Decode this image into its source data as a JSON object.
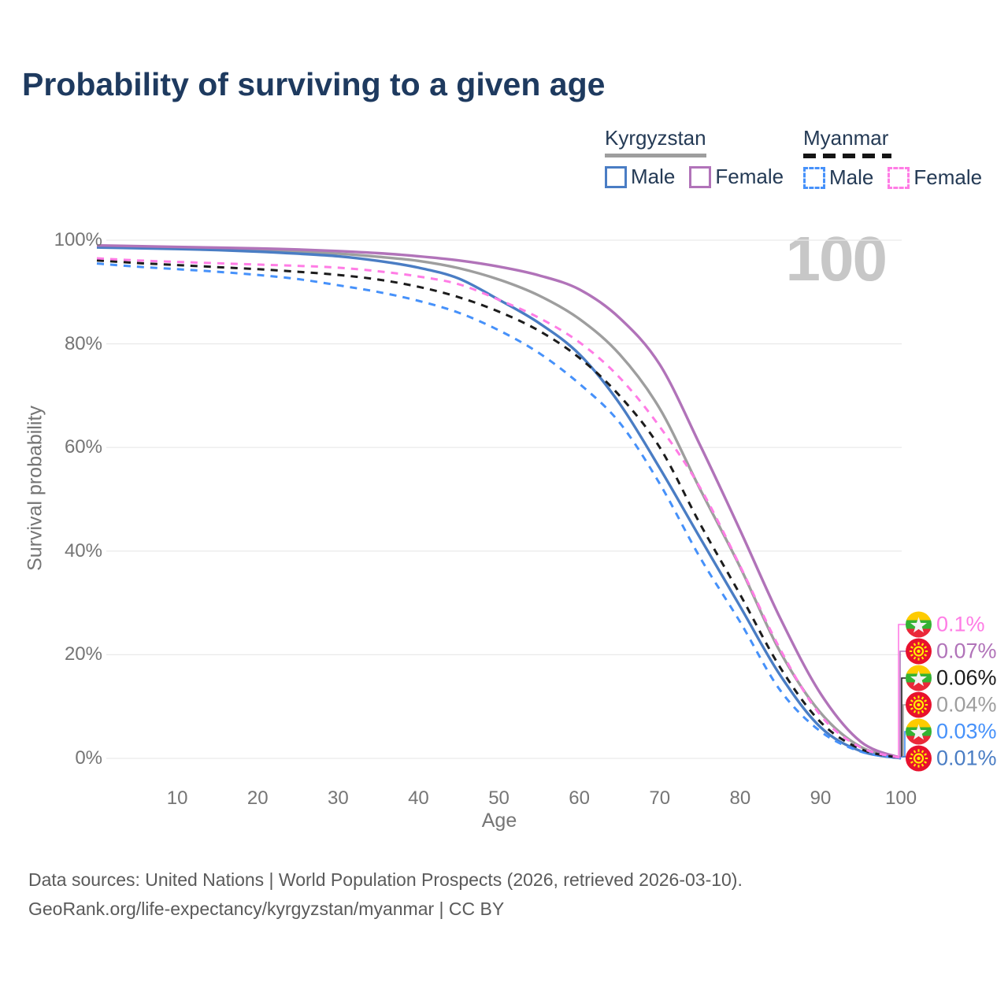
{
  "title": "Probability of surviving to a given age",
  "legend": {
    "groups": [
      {
        "country": "Kyrgyzstan",
        "line_style": "solid",
        "items": [
          {
            "label": "Male"
          },
          {
            "label": "Female"
          }
        ]
      },
      {
        "country": "Myanmar",
        "line_style": "dashed",
        "items": [
          {
            "label": "Male"
          },
          {
            "label": "Female"
          }
        ]
      }
    ]
  },
  "watermark": "100",
  "y_axis": {
    "label": "Survival probability",
    "ticks": [
      "0%",
      "20%",
      "40%",
      "60%",
      "80%",
      "100%"
    ],
    "tick_values": [
      0,
      20,
      40,
      60,
      80,
      100
    ]
  },
  "x_axis": {
    "label": "Age",
    "ticks": [
      "10",
      "20",
      "30",
      "40",
      "50",
      "60",
      "70",
      "80",
      "90",
      "100"
    ],
    "tick_values": [
      10,
      20,
      30,
      40,
      50,
      60,
      70,
      80,
      90,
      100
    ]
  },
  "end_labels": [
    {
      "value": "0.1%",
      "flag": "myanmar",
      "series": "Myanmar Female",
      "color": "#ff7ce5"
    },
    {
      "value": "0.07%",
      "flag": "kyrgyzstan",
      "series": "Kyrgyzstan Female",
      "color": "#b173b9"
    },
    {
      "value": "0.06%",
      "flag": "myanmar",
      "series": "Myanmar Total",
      "color": "#1c1c1c"
    },
    {
      "value": "0.04%",
      "flag": "kyrgyzstan",
      "series": "Kyrgyzstan Total",
      "color": "#9e9e9e"
    },
    {
      "value": "0.03%",
      "flag": "myanmar",
      "series": "Myanmar Male",
      "color": "#4691fa"
    },
    {
      "value": "0.01%",
      "flag": "kyrgyzstan",
      "series": "Kyrgyzstan Male",
      "color": "#4a7dc4"
    }
  ],
  "source": {
    "line1": "Data sources: United Nations | World Population Prospects (2026, retrieved 2026-03-10).",
    "line2": "GeoRank.org/life-expectancy/kyrgyzstan/myanmar | CC BY"
  },
  "colors": {
    "title_text": "#1e3a5f",
    "legend_text": "#243a55",
    "axis_text": "#757575",
    "grid": "#e9e9e9",
    "watermark": "#c7c7c7",
    "source_text": "#5a5a5a",
    "kyrgyzstan_underline": "#9e9e9e",
    "myanmar_underline": "#151515"
  },
  "chart_data": {
    "type": "line",
    "title": "Probability of surviving to a given age",
    "xlabel": "Age",
    "ylabel": "Survival probability",
    "xlim": [
      0,
      100
    ],
    "ylim": [
      0,
      100
    ],
    "grid": "horizontal",
    "legend_position": "top-right",
    "x": [
      0,
      5,
      10,
      15,
      20,
      25,
      30,
      35,
      40,
      45,
      50,
      55,
      60,
      65,
      70,
      75,
      80,
      85,
      90,
      95,
      100
    ],
    "series": [
      {
        "name": "Kyrgyzstan Total",
        "country": "Kyrgyzstan",
        "sex": "Total",
        "style": "solid",
        "color": "#9e9e9e",
        "values": [
          98.8,
          98.65,
          98.5,
          98.3,
          98.1,
          97.8,
          97.4,
          96.8,
          96.0,
          94.6,
          92.4,
          89.3,
          84.8,
          78.0,
          67.5,
          52.0,
          36.9,
          20.5,
          8.8,
          2.2,
          0.04
        ],
        "end_label": "0.04%"
      },
      {
        "name": "Kyrgyzstan Male",
        "country": "Kyrgyzstan",
        "sex": "Male",
        "style": "solid",
        "color": "#4a7dc4",
        "values": [
          98.6,
          98.45,
          98.3,
          98.1,
          97.8,
          97.4,
          96.9,
          96.0,
          94.7,
          92.6,
          88.5,
          84.0,
          78.0,
          68.5,
          56.0,
          42.6,
          29.3,
          16.0,
          6.0,
          1.4,
          0.01
        ],
        "end_label": "0.01%"
      },
      {
        "name": "Kyrgyzstan Female",
        "country": "Kyrgyzstan",
        "sex": "Female",
        "style": "solid",
        "color": "#b173b9",
        "values": [
          99.0,
          98.85,
          98.7,
          98.55,
          98.4,
          98.2,
          97.9,
          97.5,
          96.9,
          96.1,
          94.9,
          93.2,
          90.5,
          85.0,
          76.0,
          60.5,
          44.0,
          27.0,
          12.5,
          3.2,
          0.07
        ],
        "end_label": "0.07%"
      },
      {
        "name": "Myanmar Male",
        "country": "Myanmar",
        "sex": "Male",
        "style": "dashed",
        "color": "#4691fa",
        "values": [
          95.5,
          94.9,
          94.4,
          93.9,
          93.3,
          92.5,
          91.3,
          90.0,
          88.3,
          86.0,
          82.6,
          78.2,
          72.3,
          64.8,
          53.0,
          38.8,
          26.3,
          13.1,
          5.2,
          1.3,
          0.03
        ],
        "end_label": "0.03%"
      },
      {
        "name": "Myanmar Total",
        "country": "Myanmar",
        "sex": "Total",
        "style": "dashed",
        "color": "#1c1c1c",
        "values": [
          96.1,
          95.6,
          95.2,
          94.8,
          94.4,
          93.9,
          93.3,
          92.4,
          91.0,
          89.0,
          86.2,
          82.5,
          77.3,
          70.0,
          60.0,
          45.3,
          31.6,
          17.5,
          7.0,
          1.8,
          0.06
        ],
        "end_label": "0.06%"
      },
      {
        "name": "Myanmar Female",
        "country": "Myanmar",
        "sex": "Female",
        "style": "dashed",
        "color": "#ff7ce5",
        "values": [
          96.5,
          96.1,
          95.8,
          95.55,
          95.3,
          95.05,
          94.7,
          94.0,
          93.0,
          91.5,
          88.5,
          85.0,
          80.3,
          73.5,
          64.0,
          52.3,
          37.1,
          21.0,
          8.3,
          2.1,
          0.1
        ],
        "end_label": "0.1%"
      }
    ]
  }
}
